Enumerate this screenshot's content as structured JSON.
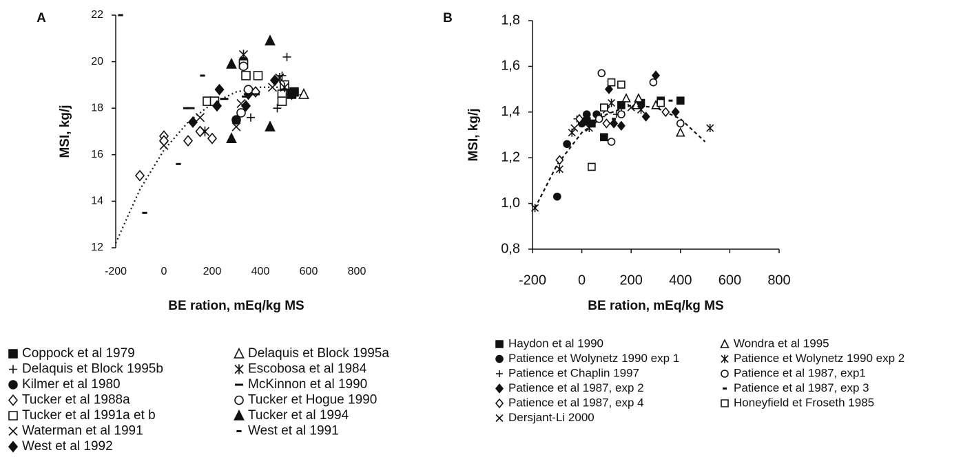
{
  "chart_data": [
    {
      "type": "scatter",
      "panel_label": "A",
      "xlabel": "BE ration, mEq/kg MS",
      "ylabel": "MSI, kg/j",
      "xlim": [
        -200,
        800
      ],
      "ylim": [
        12,
        22
      ],
      "xticks": [
        -200,
        0,
        200,
        400,
        600,
        800
      ],
      "yticks": [
        12,
        14,
        16,
        18,
        20,
        22
      ],
      "x_axis_line": false,
      "trend_style": "dotted",
      "trend": {
        "x": [
          -200,
          -100,
          0,
          100,
          200,
          300,
          400,
          500,
          600
        ],
        "values": [
          12.2,
          14.5,
          16.2,
          17.4,
          18.2,
          18.7,
          18.9,
          18.9,
          18.4
        ]
      },
      "series": [
        {
          "name": "Coppock et al 1979",
          "marker": "square-filled",
          "color": "#111",
          "x": [
            530,
            540
          ],
          "values": [
            18.6,
            18.7
          ]
        },
        {
          "name": "Delaquis et Block 1995b",
          "marker": "plus",
          "color": "#111",
          "x": [
            510,
            490,
            360,
            470,
            500
          ],
          "values": [
            20.2,
            19.4,
            17.6,
            18,
            18.6
          ]
        },
        {
          "name": "Kilmer et al 1980",
          "marker": "circle-filled",
          "color": "#111",
          "x": [
            330,
            300
          ],
          "values": [
            20,
            17.5
          ]
        },
        {
          "name": "Tucker et al 1988a",
          "marker": "diamond-open",
          "color": "#111",
          "x": [
            -100,
            0,
            0,
            100,
            200,
            150,
            380
          ],
          "values": [
            15.1,
            16.8,
            16.6,
            16.6,
            16.7,
            17,
            18.7
          ]
        },
        {
          "name": "Tucker et al 1991a et b",
          "marker": "square-open",
          "color": "#111",
          "x": [
            180,
            340,
            390,
            330,
            490,
            490,
            500,
            210
          ],
          "values": [
            18.3,
            19.4,
            19.4,
            19.9,
            18.6,
            18.3,
            19,
            18.3
          ]
        },
        {
          "name": "Waterman et al 1991",
          "marker": "x",
          "color": "#111",
          "x": [
            0,
            150,
            300,
            320,
            450
          ],
          "values": [
            16.4,
            17.6,
            17.2,
            18.2,
            18.9
          ]
        },
        {
          "name": "West et al 1992",
          "marker": "diamond-filled",
          "color": "#111",
          "x": [
            120,
            230,
            220,
            340,
            460,
            350,
            530
          ],
          "values": [
            17.4,
            18.8,
            18.1,
            18.1,
            19.2,
            18.6,
            18.6
          ]
        },
        {
          "name": "Delaquis et Block 1995a",
          "marker": "triangle-open",
          "color": "#111",
          "x": [
            580
          ],
          "values": [
            18.6
          ]
        },
        {
          "name": "Escobosa et al 1984",
          "marker": "star",
          "color": "#111",
          "x": [
            330,
            500,
            170,
            480
          ],
          "values": [
            20.3,
            18.9,
            17,
            19.3
          ]
        },
        {
          "name": "McKinnon et al 1990",
          "marker": "dash",
          "color": "#111",
          "x": [
            110,
            250,
            340,
            380
          ],
          "values": [
            18,
            18.4,
            18.5,
            18.6
          ]
        },
        {
          "name": "Tucker et Hogue 1990",
          "marker": "circle-open",
          "color": "#111",
          "x": [
            330,
            320,
            350
          ],
          "values": [
            19.8,
            17.8,
            18.8
          ]
        },
        {
          "name": "Tucker et al 1994",
          "marker": "triangle-filled",
          "color": "#111",
          "x": [
            280,
            440,
            280,
            440
          ],
          "values": [
            19.9,
            20.9,
            16.7,
            17.2
          ]
        },
        {
          "name": "West et al 1991",
          "marker": "short-dash",
          "color": "#111",
          "x": [
            -180,
            -80,
            60,
            160,
            90
          ],
          "values": [
            22,
            13.5,
            15.6,
            19.4,
            18
          ]
        }
      ]
    },
    {
      "type": "scatter",
      "panel_label": "B",
      "xlabel": "BE ration, mEq/kg MS",
      "ylabel": "MSI, kg/j",
      "xlim": [
        -200,
        800
      ],
      "ylim": [
        0.8,
        1.8
      ],
      "xticks": [
        -200,
        0,
        200,
        400,
        600,
        800
      ],
      "yticks": [
        {
          "value": 0.8,
          "label": "0,8"
        },
        {
          "value": 1.0,
          "label": "1,0"
        },
        {
          "value": 1.2,
          "label": "1,2"
        },
        {
          "value": 1.4,
          "label": "1,4"
        },
        {
          "value": 1.6,
          "label": "1,6"
        },
        {
          "value": 1.8,
          "label": "1,8"
        }
      ],
      "x_axis_line": true,
      "trend_style": "dashed",
      "trend": {
        "x": [
          -190,
          -100,
          0,
          100,
          200,
          300,
          400,
          500
        ],
        "values": [
          0.98,
          1.17,
          1.31,
          1.39,
          1.43,
          1.42,
          1.37,
          1.27
        ]
      },
      "series": [
        {
          "name": "Haydon et al 1990",
          "marker": "square-filled",
          "color": "#111",
          "x": [
            40,
            90,
            160,
            240,
            320,
            400,
            20
          ],
          "values": [
            1.35,
            1.29,
            1.43,
            1.44,
            1.45,
            1.45,
            1.36
          ]
        },
        {
          "name": "Patience et Wolynetz 1990 exp 1",
          "marker": "circle-filled",
          "color": "#111",
          "x": [
            -100,
            -60,
            20,
            60,
            0
          ],
          "values": [
            1.03,
            1.26,
            1.39,
            1.39,
            1.35
          ]
        },
        {
          "name": "Patience et Chaplin 1997",
          "marker": "plus",
          "color": "#111",
          "x": [
            -20,
            80,
            140,
            160
          ],
          "values": [
            1.37,
            1.38,
            1.39,
            1.4
          ]
        },
        {
          "name": "Patience et al 1987, exp 2",
          "marker": "diamond-filled",
          "color": "#111",
          "x": [
            110,
            300,
            160,
            260,
            380,
            130,
            240
          ],
          "values": [
            1.5,
            1.56,
            1.34,
            1.38,
            1.4,
            1.35,
            1.43
          ]
        },
        {
          "name": "Patience et al 1987, exp 4",
          "marker": "diamond-open",
          "color": "#111",
          "x": [
            -90,
            -10,
            100,
            340
          ],
          "values": [
            1.19,
            1.37,
            1.35,
            1.4
          ]
        },
        {
          "name": "Dersjant-Li 2000",
          "marker": "x",
          "color": "#111",
          "x": [
            -30,
            40,
            100,
            200
          ],
          "values": [
            1.33,
            1.35,
            1.41,
            1.42
          ]
        },
        {
          "name": "Wondra et al 1995",
          "marker": "triangle-open",
          "color": "#111",
          "x": [
            400,
            180,
            230,
            300,
            220
          ],
          "values": [
            1.31,
            1.46,
            1.46,
            1.43,
            1.43
          ]
        },
        {
          "name": "Patience et Wolynetz 1990 exp 2",
          "marker": "star",
          "color": "#111",
          "x": [
            -190,
            -90,
            -40,
            120,
            520,
            240,
            30
          ],
          "values": [
            0.98,
            1.15,
            1.31,
            1.44,
            1.33,
            1.41,
            1.33
          ]
        },
        {
          "name": "Patience et al 1987,  exp1",
          "marker": "circle-open",
          "color": "#111",
          "x": [
            80,
            290,
            120,
            400,
            160,
            70
          ],
          "values": [
            1.57,
            1.53,
            1.27,
            1.35,
            1.39,
            1.37
          ]
        },
        {
          "name": "Patience et al 1987, exp 3",
          "marker": "short-dash",
          "color": "#111",
          "x": [
            360,
            130
          ],
          "values": [
            1.45,
            1.37
          ]
        },
        {
          "name": "Honeyfield et Froseth 1985",
          "marker": "square-open",
          "color": "#111",
          "x": [
            40,
            120,
            160,
            90,
            320
          ],
          "values": [
            1.16,
            1.53,
            1.52,
            1.42,
            1.44
          ]
        }
      ]
    }
  ]
}
